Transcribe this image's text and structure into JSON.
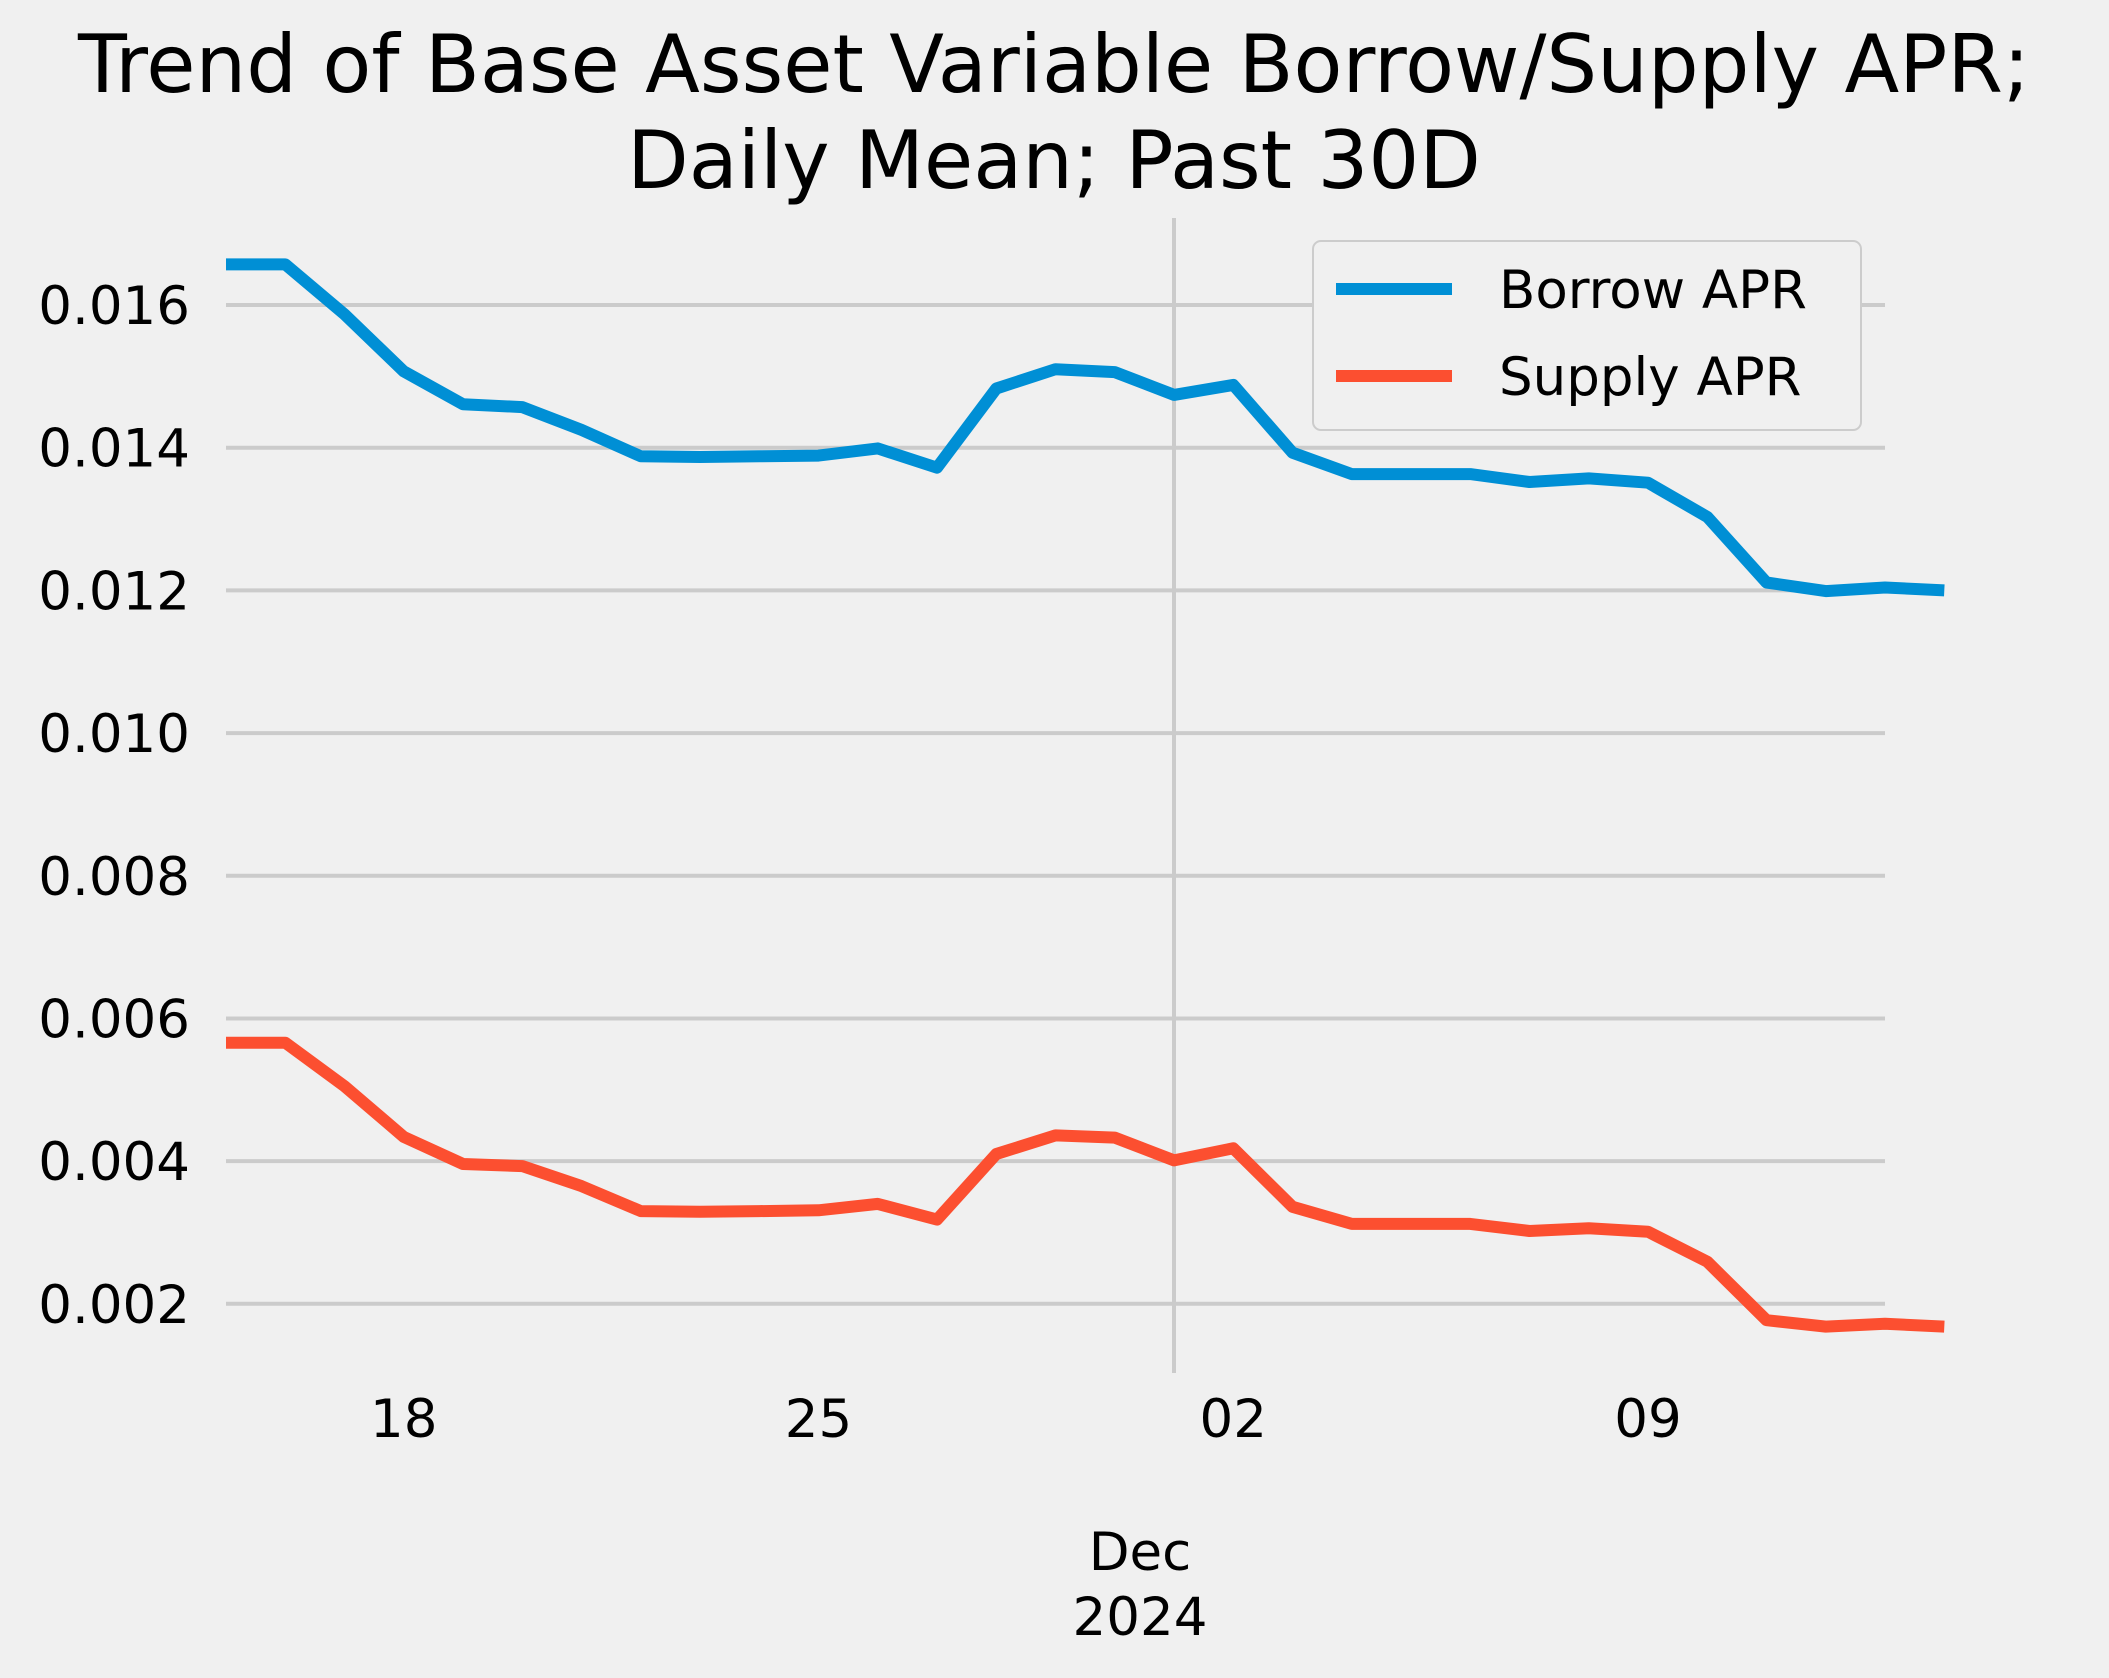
{
  "chart_data": {
    "type": "line",
    "title_lines": [
      "Trend of Base Asset Variable Borrow/Supply APR;",
      "Daily Mean; Past 30D"
    ],
    "xlabel": "",
    "ylabel": "",
    "x_tick_labels": [
      "18",
      "25",
      "02",
      "09"
    ],
    "x_major_label_lines": [
      "Dec",
      "2024"
    ],
    "y_tick_labels": [
      "0.002",
      "0.004",
      "0.006",
      "0.008",
      "0.010",
      "0.012",
      "0.014",
      "0.016"
    ],
    "y_ticks": [
      0.002,
      0.004,
      0.006,
      0.008,
      0.01,
      0.012,
      0.014,
      0.016
    ],
    "x_ticks": [
      "2024-11-18",
      "2024-11-25",
      "2024-12-02",
      "2024-12-09"
    ],
    "major_gridline_x": "2024-12-01",
    "xlim": [
      "2024-11-15",
      "2024-12-13"
    ],
    "ylim": [
      0.00103,
      0.01722
    ],
    "grid": true,
    "legend_position": "top-right",
    "x": [
      "2024-11-15",
      "2024-11-16",
      "2024-11-17",
      "2024-11-18",
      "2024-11-19",
      "2024-11-20",
      "2024-11-21",
      "2024-11-22",
      "2024-11-23",
      "2024-11-24",
      "2024-11-25",
      "2024-11-26",
      "2024-11-27",
      "2024-11-28",
      "2024-11-29",
      "2024-11-30",
      "2024-12-01",
      "2024-12-02",
      "2024-12-03",
      "2024-12-04",
      "2024-12-05",
      "2024-12-06",
      "2024-12-07",
      "2024-12-08",
      "2024-12-09",
      "2024-12-10",
      "2024-12-11",
      "2024-12-12",
      "2024-12-13",
      "2024-12-14"
    ],
    "series": [
      {
        "name": "Borrow APR",
        "color": "#008fd5",
        "values": [
          0.01657,
          0.01657,
          0.01587,
          0.01507,
          0.01461,
          0.01457,
          0.01425,
          0.01388,
          0.01387,
          0.01388,
          0.01389,
          0.01399,
          0.01372,
          0.01483,
          0.0151,
          0.01506,
          0.01474,
          0.01488,
          0.01393,
          0.01363,
          0.01363,
          0.01363,
          0.01352,
          0.01357,
          0.01351,
          0.01303,
          0.01211,
          0.01199,
          0.01204,
          0.012
        ]
      },
      {
        "name": "Supply APR",
        "color": "#fc4f30",
        "values": [
          0.00566,
          0.00566,
          0.00505,
          0.00434,
          0.00396,
          0.00393,
          0.00365,
          0.0033,
          0.00329,
          0.0033,
          0.00331,
          0.0034,
          0.00318,
          0.0041,
          0.00436,
          0.00433,
          0.00401,
          0.00418,
          0.00336,
          0.00312,
          0.00312,
          0.00312,
          0.00302,
          0.00306,
          0.00301,
          0.00259,
          0.00177,
          0.00168,
          0.00172,
          0.00168
        ]
      }
    ]
  }
}
